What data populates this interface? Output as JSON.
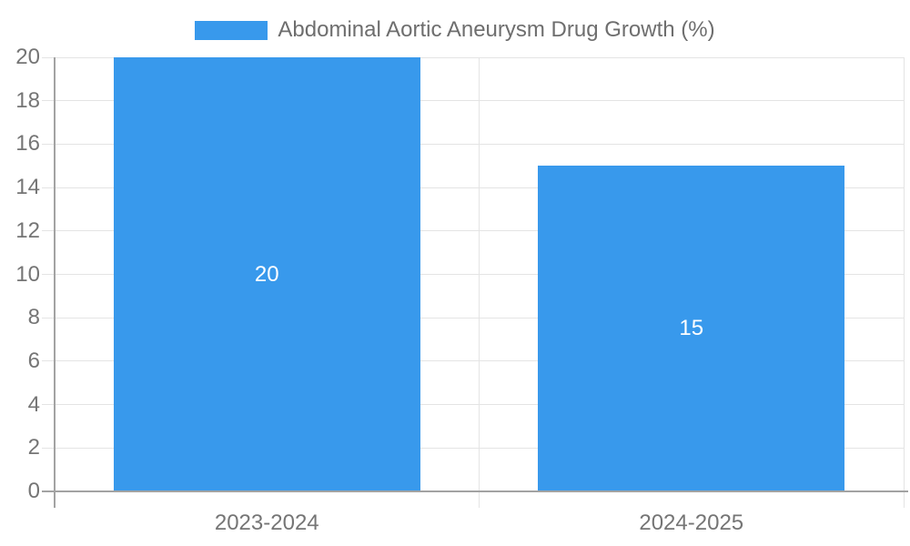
{
  "colors": {
    "bar": "#3899EC",
    "grid": "#E4E4E4",
    "axis": "#A3A3A3",
    "tick_label": "#757575",
    "legend_label": "#6E6E6E",
    "value_label": "#FFFFFF",
    "background": "#FFFFFF"
  },
  "chart_data": {
    "type": "bar",
    "legend_label": "Abdominal Aortic Aneurysm Drug Growth (%)",
    "categories": [
      "2023-2024",
      "2024-2025"
    ],
    "values": [
      20,
      15
    ],
    "value_labels": [
      "20",
      "15"
    ],
    "title": "",
    "xlabel": "",
    "ylabel": "",
    "ylim": [
      0,
      20
    ],
    "ytick_step": 2,
    "yticks": [
      0,
      2,
      4,
      6,
      8,
      10,
      12,
      14,
      16,
      18,
      20
    ],
    "grid": true,
    "legend_position": "top-center",
    "bar_fraction_of_category": 0.722
  }
}
